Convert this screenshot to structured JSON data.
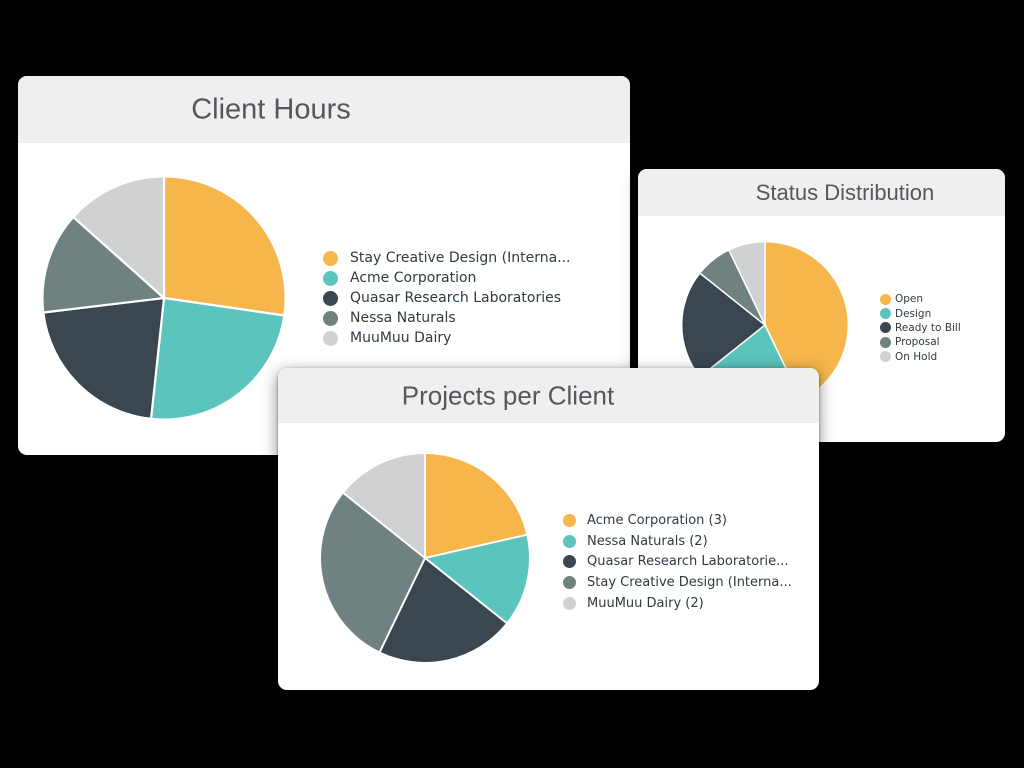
{
  "colors": {
    "background": "#000000",
    "card_background": "#ffffff",
    "card_header_background": "#efefef",
    "title_text": "#54575d",
    "legend_text": "#2f3b45",
    "palette": {
      "orange": "#f7b64b",
      "teal": "#5bc4bc",
      "dark_navy": "#3a4750",
      "slate": "#6f8180",
      "light_gray": "#cfd1d2"
    }
  },
  "chart_data": [
    {
      "id": "client-hours",
      "type": "pie",
      "title": "Client Hours",
      "legend_position": "right",
      "start_angle_deg": 0,
      "direction": "clockwise",
      "values_unit": "percent (estimated from slice angles)",
      "labels": [
        "Stay Creative Design (Interna...",
        "Acme Corporation",
        "Quasar Research Laboratories",
        "Nessa Naturals",
        "MuuMuu Dairy"
      ],
      "values": [
        27.3,
        24.4,
        21.4,
        13.5,
        13.4
      ],
      "colors": [
        "#f7b64b",
        "#5bc4bc",
        "#3a4750",
        "#6f8180",
        "#cfd1d2"
      ]
    },
    {
      "id": "status-distribution",
      "type": "pie",
      "title": "Status Distribution",
      "legend_position": "right",
      "start_angle_deg": 0,
      "direction": "clockwise",
      "values_unit": "count (estimated from slice angles)",
      "labels": [
        "Open",
        "Design",
        "Ready to Bill",
        "Proposal",
        "On Hold"
      ],
      "values": [
        6,
        3,
        3,
        1,
        1
      ],
      "colors": [
        "#f7b64b",
        "#5bc4bc",
        "#3a4750",
        "#6f8180",
        "#cfd1d2"
      ]
    },
    {
      "id": "projects-per-client",
      "type": "pie",
      "title": "Projects per Client",
      "legend_position": "right",
      "start_angle_deg": 0,
      "direction": "clockwise",
      "values_unit": "count",
      "labels": [
        "Acme Corporation (3)",
        "Nessa Naturals (2)",
        "Quasar Research Laboratorie...",
        "Stay Creative Design (Interna...",
        "MuuMuu Dairy (2)"
      ],
      "values": [
        3,
        2,
        3,
        4,
        2
      ],
      "colors": [
        "#f7b64b",
        "#5bc4bc",
        "#3a4750",
        "#6f8180",
        "#cfd1d2"
      ]
    }
  ]
}
